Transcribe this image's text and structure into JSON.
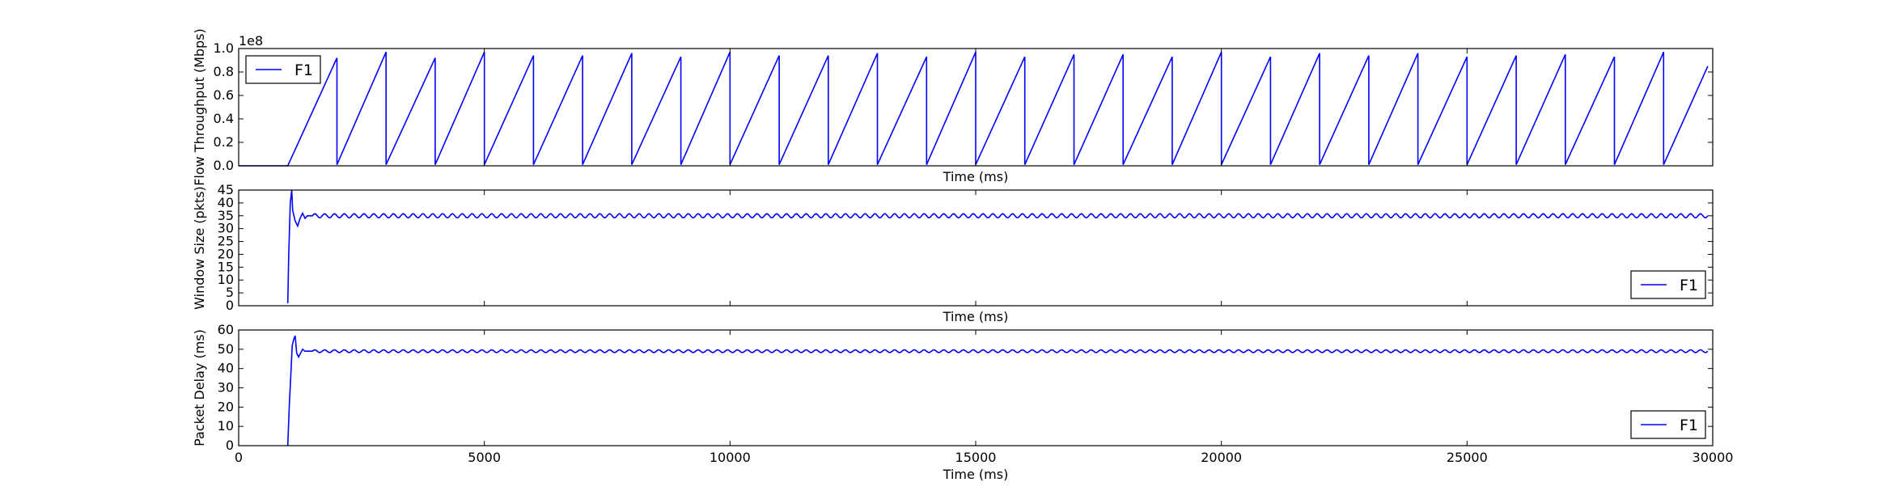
{
  "chart_data": [
    {
      "type": "line",
      "xlabel": "Time (ms)",
      "ylabel": "Flow Throughput (Mbps)",
      "offset_text": "1e8",
      "xlim": [
        0,
        30000
      ],
      "ylim": [
        0.0,
        1.0
      ],
      "xticks": [],
      "yticks": [
        0.0,
        0.2,
        0.4,
        0.6,
        0.8,
        1.0
      ],
      "ytick_labels": [
        "0.0",
        "0.2",
        "0.4",
        "0.6",
        "0.8",
        "1.0"
      ],
      "legend": {
        "entries": [
          "F1"
        ],
        "loc": "upper-left"
      },
      "series": [
        {
          "name": "F1",
          "color": "#0000ff",
          "x": [
            0,
            1000,
            2000,
            2000,
            3000,
            3000,
            4000,
            4000,
            5000,
            5000,
            6000,
            6000,
            7000,
            7000,
            8000,
            8000,
            9000,
            9000,
            10000,
            10000,
            11000,
            11000,
            12000,
            12000,
            13000,
            13000,
            14000,
            14000,
            15000,
            15000,
            16000,
            16000,
            17000,
            17000,
            18000,
            18000,
            19000,
            19000,
            20000,
            20000,
            21000,
            21000,
            22000,
            22000,
            23000,
            23000,
            24000,
            24000,
            25000,
            25000,
            26000,
            26000,
            27000,
            27000,
            28000,
            28000,
            29000,
            29000,
            29900
          ],
          "y": [
            0,
            0,
            0.92,
            0.01,
            0.97,
            0.01,
            0.92,
            0.01,
            0.97,
            0.01,
            0.94,
            0.01,
            0.94,
            0.01,
            0.96,
            0.01,
            0.93,
            0.01,
            0.97,
            0.01,
            0.94,
            0.01,
            0.94,
            0.01,
            0.96,
            0.01,
            0.93,
            0.01,
            0.97,
            0.01,
            0.93,
            0.01,
            0.95,
            0.01,
            0.95,
            0.01,
            0.93,
            0.01,
            0.97,
            0.01,
            0.93,
            0.01,
            0.96,
            0.01,
            0.94,
            0.01,
            0.96,
            0.01,
            0.93,
            0.01,
            0.94,
            0.01,
            0.95,
            0.01,
            0.93,
            0.01,
            0.97,
            0.01,
            0.85
          ]
        }
      ]
    },
    {
      "type": "line",
      "xlabel": "Time (ms)",
      "ylabel": "Window Size (pkts)",
      "xlim": [
        0,
        30000
      ],
      "ylim": [
        0,
        45
      ],
      "xticks": [],
      "yticks": [
        0,
        5,
        10,
        15,
        20,
        25,
        30,
        35,
        40,
        45
      ],
      "ytick_labels": [
        "0",
        "5",
        "10",
        "15",
        "20",
        "25",
        "30",
        "35",
        "40",
        "45"
      ],
      "legend": {
        "entries": [
          "F1"
        ],
        "loc": "lower-right"
      },
      "series": [
        {
          "name": "F1",
          "color": "#0000ff",
          "x": [
            1000,
            1020,
            1050,
            1080,
            1100,
            1150,
            1200,
            1250,
            1300,
            1350,
            1400,
            1450,
            1500
          ],
          "y": [
            1,
            20,
            40,
            45,
            37,
            33,
            31,
            34,
            36,
            34,
            35,
            35,
            35
          ],
          "steady_state": {
            "start": 1500,
            "end": 29900,
            "mean": 35,
            "amplitude": 0.8,
            "period_ms": 200
          }
        }
      ]
    },
    {
      "type": "line",
      "xlabel": "Time (ms)",
      "ylabel": "Packet Delay (ms)",
      "xlim": [
        0,
        30000
      ],
      "ylim": [
        0,
        60
      ],
      "xticks": [
        0,
        5000,
        10000,
        15000,
        20000,
        25000,
        30000
      ],
      "xtick_labels": [
        "0",
        "5000",
        "10000",
        "15000",
        "20000",
        "25000",
        "30000"
      ],
      "yticks": [
        0,
        10,
        20,
        30,
        40,
        50,
        60
      ],
      "ytick_labels": [
        "0",
        "10",
        "20",
        "30",
        "40",
        "50",
        "60"
      ],
      "legend": {
        "entries": [
          "F1"
        ],
        "loc": "lower-right"
      },
      "series": [
        {
          "name": "F1",
          "color": "#0000ff",
          "x": [
            1000,
            1030,
            1060,
            1090,
            1120,
            1150,
            1180,
            1220,
            1260,
            1300,
            1350,
            1400,
            1450,
            1500
          ],
          "y": [
            0,
            21,
            36,
            52,
            55,
            57,
            48,
            46,
            48,
            50,
            49,
            49,
            49,
            49
          ],
          "steady_state": {
            "start": 1500,
            "end": 29900,
            "mean": 49,
            "amplitude": 0.7,
            "period_ms": 200
          }
        }
      ]
    }
  ]
}
